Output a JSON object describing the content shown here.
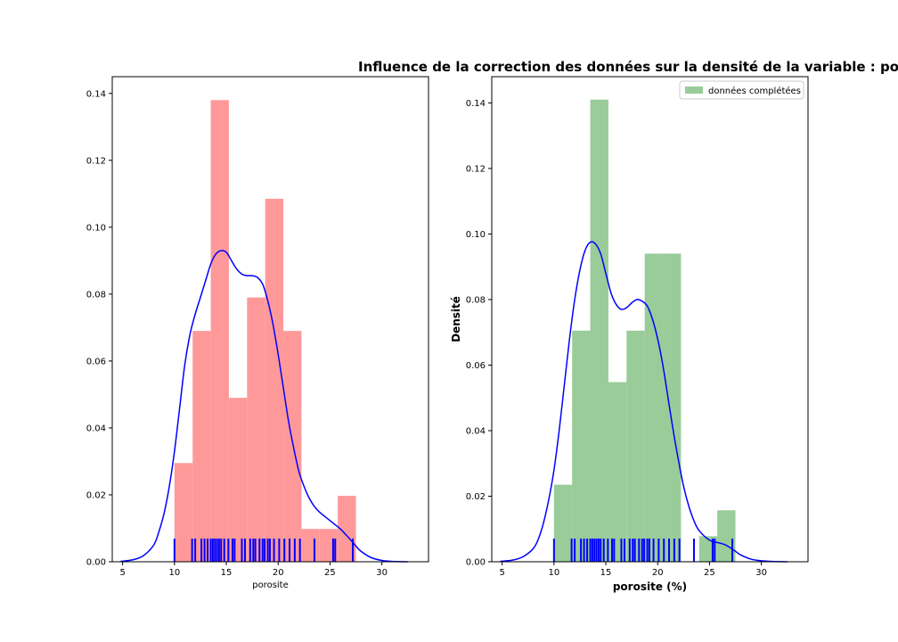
{
  "suptitle": "Influence de la correction des données sur la densité de la variable : po",
  "chart_data": [
    {
      "type": "bar",
      "title": "",
      "xlabel": "porosite",
      "ylabel": "",
      "xlim": [
        4,
        34.5
      ],
      "ylim": [
        0,
        0.145
      ],
      "xticks": [
        5,
        10,
        15,
        20,
        25,
        30
      ],
      "yticks": [
        0.0,
        0.02,
        0.04,
        0.06,
        0.08,
        0.1,
        0.12,
        0.14
      ],
      "hist_color": "#ff9999",
      "kde_color": "#0000ff",
      "rug_color": "#0000ff",
      "bins": [
        {
          "x0": 10.0,
          "x1": 11.75,
          "value": 0.0295
        },
        {
          "x0": 11.75,
          "x1": 13.5,
          "value": 0.069
        },
        {
          "x0": 13.5,
          "x1": 15.25,
          "value": 0.138
        },
        {
          "x0": 15.25,
          "x1": 17.0,
          "value": 0.049
        },
        {
          "x0": 17.0,
          "x1": 18.75,
          "value": 0.079
        },
        {
          "x0": 18.75,
          "x1": 20.5,
          "value": 0.1085
        },
        {
          "x0": 20.5,
          "x1": 22.25,
          "value": 0.069
        },
        {
          "x0": 22.25,
          "x1": 24.0,
          "value": 0.0098
        },
        {
          "x0": 24.0,
          "x1": 25.75,
          "value": 0.0098
        },
        {
          "x0": 25.75,
          "x1": 27.5,
          "value": 0.0197
        }
      ],
      "kde": {
        "x": [
          4.8,
          6,
          7,
          8,
          8.5,
          9,
          9.5,
          10,
          10.5,
          11,
          11.5,
          12,
          12.5,
          13,
          13.5,
          14,
          14.5,
          15,
          15.5,
          16,
          16.5,
          17,
          17.5,
          18,
          18.5,
          19,
          19.5,
          20,
          20.5,
          21,
          21.5,
          22,
          22.5,
          23,
          23.5,
          24,
          25,
          26,
          26.5,
          27,
          27.5,
          28,
          29,
          30,
          31,
          32.5
        ],
        "y": [
          0.0001,
          0.0006,
          0.0018,
          0.005,
          0.009,
          0.0145,
          0.0225,
          0.033,
          0.046,
          0.059,
          0.068,
          0.074,
          0.079,
          0.084,
          0.089,
          0.092,
          0.093,
          0.0925,
          0.09,
          0.0875,
          0.086,
          0.0855,
          0.0855,
          0.085,
          0.083,
          0.078,
          0.071,
          0.062,
          0.052,
          0.042,
          0.034,
          0.027,
          0.0225,
          0.019,
          0.0165,
          0.0148,
          0.0123,
          0.0098,
          0.0082,
          0.0065,
          0.0047,
          0.0031,
          0.0012,
          0.0004,
          0.0001,
          0.0
        ]
      },
      "rug": [
        10.0,
        11.7,
        12.0,
        12.6,
        12.9,
        13.2,
        13.5,
        13.7,
        13.9,
        14.1,
        14.3,
        14.5,
        14.8,
        15.2,
        15.6,
        15.8,
        16.5,
        16.8,
        17.3,
        17.6,
        17.8,
        18.2,
        18.5,
        18.7,
        19.0,
        19.2,
        19.6,
        20.1,
        20.6,
        21.1,
        21.6,
        22.1,
        23.5,
        25.3,
        25.5,
        27.2
      ]
    },
    {
      "type": "bar",
      "title": "",
      "xlabel": "porosite (%)",
      "ylabel": "Densité",
      "xlim": [
        4,
        34.5
      ],
      "ylim": [
        0,
        0.148
      ],
      "xticks": [
        5,
        10,
        15,
        20,
        25,
        30
      ],
      "yticks": [
        0.0,
        0.02,
        0.04,
        0.06,
        0.08,
        0.1,
        0.12,
        0.14
      ],
      "hist_color": "#99cc99",
      "kde_color": "#0000ff",
      "rug_color": "#0000ff",
      "legend": {
        "label": "données complétées",
        "position": "top-right"
      },
      "bins": [
        {
          "x0": 10.0,
          "x1": 11.75,
          "value": 0.0235
        },
        {
          "x0": 11.75,
          "x1": 13.5,
          "value": 0.0705
        },
        {
          "x0": 13.5,
          "x1": 15.25,
          "value": 0.141
        },
        {
          "x0": 15.25,
          "x1": 17.0,
          "value": 0.0548
        },
        {
          "x0": 17.0,
          "x1": 18.75,
          "value": 0.0705
        },
        {
          "x0": 18.75,
          "x1": 20.5,
          "value": 0.094
        },
        {
          "x0": 20.5,
          "x1": 22.25,
          "value": 0.094
        },
        {
          "x0": 22.25,
          "x1": 24.0,
          "value": 0.0
        },
        {
          "x0": 24.0,
          "x1": 25.75,
          "value": 0.0078
        },
        {
          "x0": 25.75,
          "x1": 27.5,
          "value": 0.0157
        }
      ],
      "kde": {
        "x": [
          4.8,
          6,
          7,
          8,
          8.5,
          9,
          9.5,
          10,
          10.5,
          11,
          11.5,
          12,
          12.5,
          13,
          13.5,
          14,
          14.5,
          15,
          15.5,
          16,
          16.5,
          17,
          17.5,
          18,
          18.5,
          19,
          19.5,
          20,
          20.5,
          21,
          21.5,
          22,
          22.5,
          23,
          23.5,
          24,
          25,
          26,
          26.5,
          27,
          27.5,
          28,
          29,
          30,
          31,
          32.5
        ],
        "y": [
          0.0001,
          0.0005,
          0.0015,
          0.004,
          0.007,
          0.012,
          0.019,
          0.028,
          0.04,
          0.054,
          0.068,
          0.08,
          0.089,
          0.095,
          0.0975,
          0.097,
          0.094,
          0.088,
          0.082,
          0.0785,
          0.077,
          0.0775,
          0.079,
          0.08,
          0.0795,
          0.078,
          0.074,
          0.068,
          0.06,
          0.05,
          0.04,
          0.031,
          0.023,
          0.017,
          0.0125,
          0.0095,
          0.0066,
          0.0057,
          0.0052,
          0.0043,
          0.0032,
          0.0021,
          0.0008,
          0.0003,
          0.0001,
          0.0
        ]
      },
      "rug": [
        10.0,
        11.7,
        12.0,
        12.6,
        12.9,
        13.2,
        13.5,
        13.7,
        13.9,
        14.1,
        14.3,
        14.5,
        14.8,
        15.2,
        15.6,
        15.8,
        16.5,
        16.8,
        17.3,
        17.6,
        17.8,
        18.2,
        18.5,
        18.7,
        19.0,
        19.2,
        19.6,
        20.1,
        20.6,
        21.1,
        21.6,
        22.1,
        23.5,
        25.3,
        25.5,
        27.2
      ]
    }
  ]
}
